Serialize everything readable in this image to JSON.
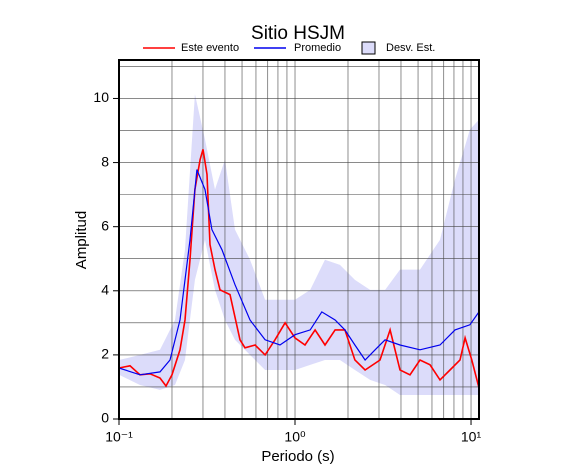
{
  "chart_data": {
    "type": "line",
    "title": "Sitio HSJM",
    "x_label": "Periodo (s)",
    "y_label": "Amplitud",
    "xscale": "log",
    "grid": true,
    "xlim": [
      0.1,
      11.1
    ],
    "ylim": [
      0,
      11.2
    ],
    "xticks": [
      {
        "value": 0.1,
        "label": "10⁻¹"
      },
      {
        "value": 1,
        "label": "10⁰"
      },
      {
        "value": 10,
        "label": "10¹"
      }
    ],
    "xminor_ticks": [
      0.2,
      0.3,
      0.4,
      0.5,
      0.6,
      0.7,
      0.8,
      0.9,
      2,
      3,
      4,
      5,
      6,
      7,
      8,
      9
    ],
    "yticks": [
      0,
      2,
      4,
      6,
      8,
      10
    ],
    "yminor_ticks": [
      1,
      3,
      5,
      7,
      9,
      11
    ],
    "series": [
      {
        "name": "Este evento",
        "color": "#ff0000",
        "x": [
          0.1,
          0.1155,
          0.1316,
          0.15,
          0.171,
          0.185,
          0.2,
          0.222,
          0.237,
          0.253,
          0.27,
          0.289,
          0.3,
          0.316,
          0.329,
          0.351,
          0.375,
          0.427,
          0.487,
          0.52,
          0.593,
          0.676,
          0.77,
          0.878,
          1,
          1.14,
          1.3,
          1.48,
          1.69,
          1.92,
          2.19,
          2.5,
          3.04,
          3.47,
          3.95,
          4.5,
          5.13,
          5.85,
          6.66,
          7.6,
          8.66,
          9.25,
          10.1,
          11.1
        ],
        "values": [
          1.59,
          1.66,
          1.38,
          1.41,
          1.28,
          1.03,
          1.38,
          2.16,
          3.09,
          4.97,
          7.16,
          8.09,
          8.41,
          7.63,
          5.44,
          4.66,
          4.03,
          3.88,
          2.47,
          2.22,
          2.31,
          2.0,
          2.47,
          3.0,
          2.53,
          2.31,
          2.78,
          2.31,
          2.78,
          2.78,
          1.84,
          1.53,
          1.84,
          2.78,
          1.53,
          1.38,
          1.84,
          1.69,
          1.22,
          1.53,
          1.84,
          2.53,
          1.84,
          0.97
        ]
      },
      {
        "name": "Promedio",
        "color": "#0000ee",
        "x": [
          0.1,
          0.1316,
          0.171,
          0.195,
          0.222,
          0.253,
          0.277,
          0.308,
          0.337,
          0.385,
          0.456,
          0.555,
          0.676,
          0.822,
          1,
          1.22,
          1.42,
          1.69,
          1.92,
          2.19,
          2.5,
          2.85,
          3.25,
          3.95,
          5.13,
          6.66,
          8.11,
          9.86,
          11.1
        ],
        "values": [
          1.59,
          1.38,
          1.47,
          1.84,
          3.09,
          5.59,
          7.78,
          7.16,
          5.91,
          5.28,
          4.19,
          3.09,
          2.47,
          2.31,
          2.63,
          2.78,
          3.34,
          3.09,
          2.78,
          2.31,
          1.84,
          2.16,
          2.47,
          2.31,
          2.16,
          2.31,
          2.78,
          2.94,
          3.34
        ]
      }
    ],
    "band": {
      "name": "Desv. Est.",
      "color": "#dcdcfa",
      "x": [
        0.1,
        0.1316,
        0.171,
        0.208,
        0.237,
        0.27,
        0.308,
        0.351,
        0.4,
        0.456,
        0.555,
        0.676,
        0.822,
        1,
        1.22,
        1.48,
        1.8,
        2.19,
        2.67,
        3.25,
        3.95,
        5.13,
        6.66,
        8.11,
        9.86,
        11.1
      ],
      "upper": [
        1.84,
        2.0,
        2.16,
        3.09,
        5.28,
        10.13,
        8.72,
        7.16,
        8.09,
        5.91,
        4.97,
        3.72,
        3.72,
        3.72,
        4.03,
        4.97,
        4.81,
        4.34,
        4.03,
        4.03,
        4.66,
        4.66,
        5.59,
        7.47,
        9.03,
        9.34
      ],
      "lower": [
        1.38,
        1.06,
        0.91,
        1.06,
        1.84,
        4.34,
        5.59,
        4.03,
        3.09,
        2.47,
        2.0,
        1.53,
        1.53,
        1.53,
        1.69,
        1.84,
        1.84,
        1.53,
        1.22,
        1.06,
        0.75,
        0.75,
        0.75,
        0.75,
        0.75,
        0.75
      ]
    }
  }
}
